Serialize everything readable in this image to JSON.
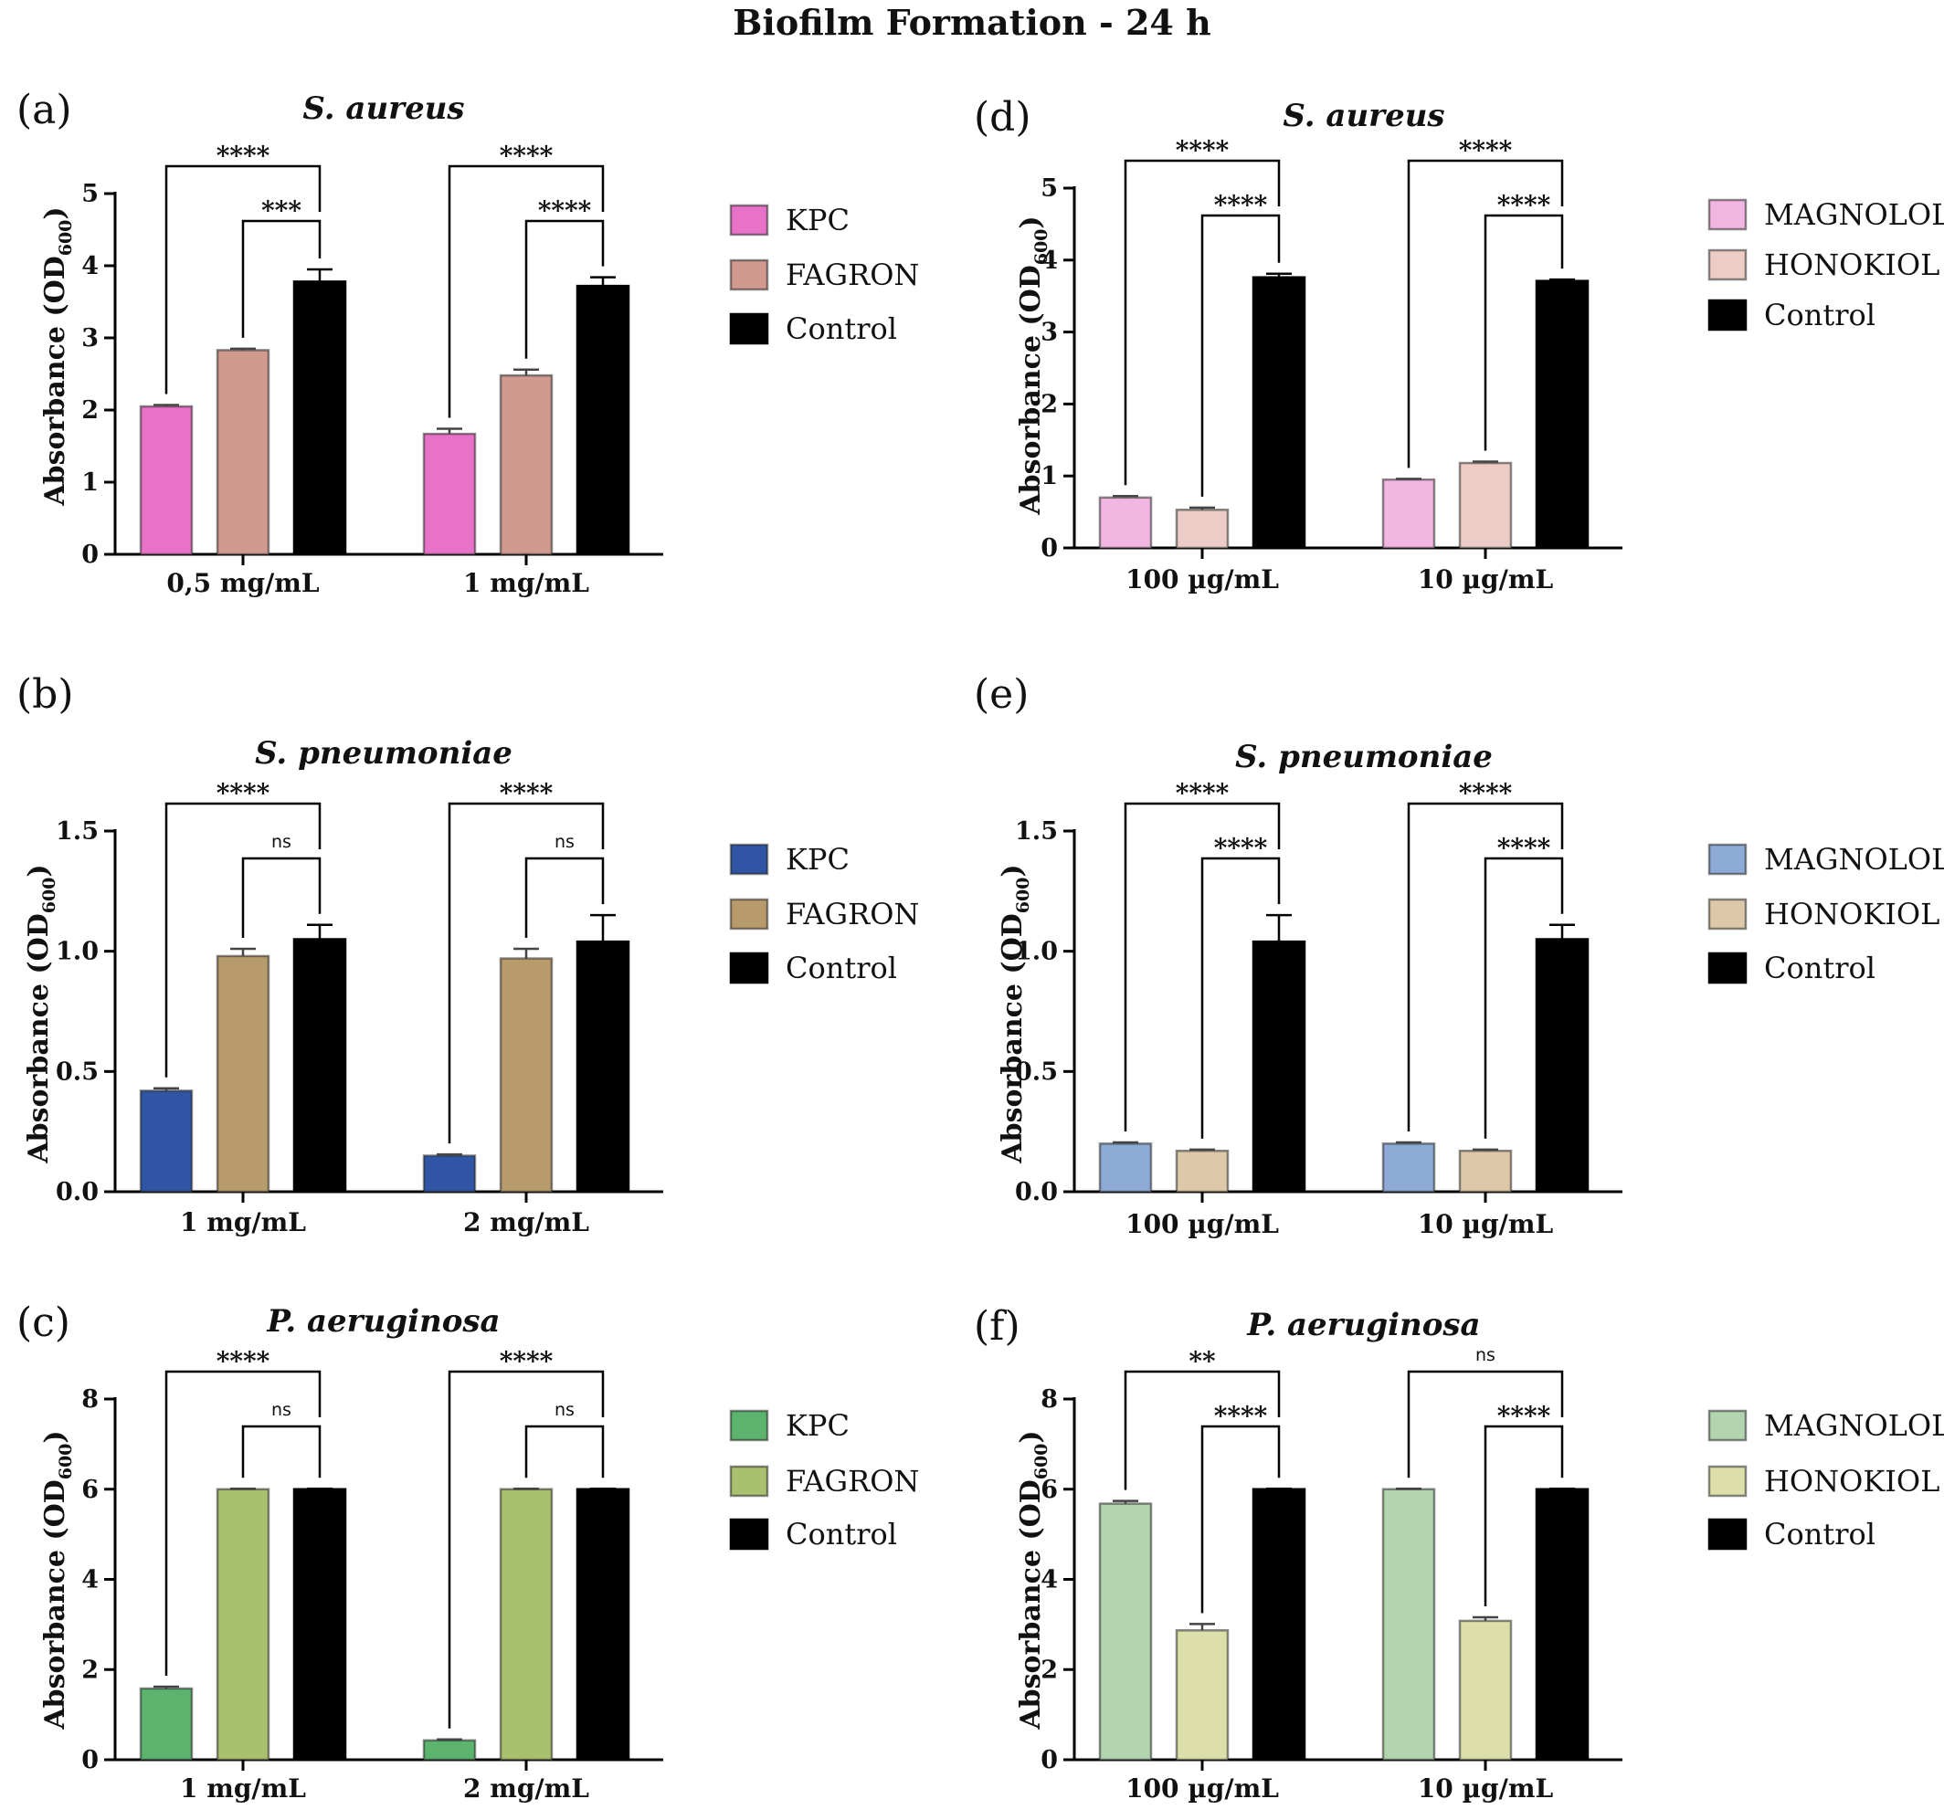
{
  "figure_title": "Biofilm Formation - 24 h",
  "colors": {
    "kpc_sa": "#e872c8",
    "fag_sa": "#d19a8e",
    "kpc_sp": "#2f55a4",
    "fag_sp": "#b89b6c",
    "kpc_pa": "#5bb36e",
    "fag_pa": "#a9c06e",
    "mag_sa": "#f2b6e2",
    "hon_sa": "#ecccc4",
    "mag_sp": "#8eaad6",
    "hon_sp": "#ddc9a9",
    "mag_pa": "#b2d4ae",
    "hon_pa": "#dddfaa",
    "control": "#000000"
  },
  "chart_data": [
    {
      "panel": "(a)",
      "type": "bar",
      "title": "S. aureus",
      "ylabel": "Absorbance (OD600)",
      "ylim": [
        0,
        5
      ],
      "yticks": [
        "0",
        "1",
        "2",
        "3",
        "4",
        "5"
      ],
      "categories": [
        "0,5 mg/mL",
        "1 mg/mL"
      ],
      "legend": [
        "KPC",
        "FAGRON",
        "Control"
      ],
      "series": [
        {
          "name": "KPC",
          "values": [
            2.05,
            1.67
          ],
          "errors": [
            0.02,
            0.07
          ],
          "color": "#e872c8"
        },
        {
          "name": "FAGRON",
          "values": [
            2.83,
            2.48
          ],
          "errors": [
            0.02,
            0.08
          ],
          "color": "#d19a8e"
        },
        {
          "name": "Control",
          "values": [
            3.78,
            3.72
          ],
          "errors": [
            0.17,
            0.12
          ],
          "color": "#000000"
        }
      ],
      "significance": [
        {
          "outer": "****",
          "inner": "***"
        },
        {
          "outer": "****",
          "inner": "****"
        }
      ]
    },
    {
      "panel": "(b)",
      "type": "bar",
      "title": "S. pneumoniae",
      "ylabel": "Absorbance (OD600)",
      "ylim": [
        0,
        1.5
      ],
      "yticks": [
        "0.0",
        "0.5",
        "1.0",
        "1.5"
      ],
      "categories": [
        "1 mg/mL",
        "2 mg/mL"
      ],
      "legend": [
        "KPC",
        "FAGRON",
        "Control"
      ],
      "series": [
        {
          "name": "KPC",
          "values": [
            0.42,
            0.15
          ],
          "errors": [
            0.01,
            0.005
          ],
          "color": "#2f55a4"
        },
        {
          "name": "FAGRON",
          "values": [
            0.98,
            0.97
          ],
          "errors": [
            0.03,
            0.04
          ],
          "color": "#b89b6c"
        },
        {
          "name": "Control",
          "values": [
            1.05,
            1.04
          ],
          "errors": [
            0.06,
            0.11
          ],
          "color": "#000000"
        }
      ],
      "significance": [
        {
          "outer": "****",
          "inner": "ns"
        },
        {
          "outer": "****",
          "inner": "ns"
        }
      ]
    },
    {
      "panel": "(c)",
      "type": "bar",
      "title": "P. aeruginosa",
      "ylabel": "Absorbance (OD600)",
      "ylim": [
        0,
        8
      ],
      "yticks": [
        "0",
        "2",
        "4",
        "6",
        "8"
      ],
      "categories": [
        "1 mg/mL",
        "2 mg/mL"
      ],
      "legend": [
        "KPC",
        "FAGRON",
        "Control"
      ],
      "series": [
        {
          "name": "KPC",
          "values": [
            1.58,
            0.43
          ],
          "errors": [
            0.04,
            0.02
          ],
          "color": "#5bb36e"
        },
        {
          "name": "FAGRON",
          "values": [
            6.0,
            6.0
          ],
          "errors": [
            0.01,
            0.01
          ],
          "color": "#a9c06e"
        },
        {
          "name": "Control",
          "values": [
            6.0,
            6.0
          ],
          "errors": [
            0.01,
            0.01
          ],
          "color": "#000000"
        }
      ],
      "significance": [
        {
          "outer": "****",
          "inner": "ns"
        },
        {
          "outer": "****",
          "inner": "ns"
        }
      ]
    },
    {
      "panel": "(d)",
      "type": "bar",
      "title": "S. aureus",
      "ylabel": "Absorbance (OD600)",
      "ylim": [
        0,
        5
      ],
      "yticks": [
        "0",
        "1",
        "2",
        "3",
        "4",
        "5"
      ],
      "categories": [
        "100 µg/mL",
        "10 µg/mL"
      ],
      "legend": [
        "MAGNOLOL",
        "HONOKIOL",
        "Control"
      ],
      "series": [
        {
          "name": "MAGNOLOL",
          "values": [
            0.7,
            0.95
          ],
          "errors": [
            0.02,
            0.01
          ],
          "color": "#f2b6e2"
        },
        {
          "name": "HONOKIOL",
          "values": [
            0.53,
            1.18
          ],
          "errors": [
            0.03,
            0.02
          ],
          "color": "#ecccc4"
        },
        {
          "name": "Control",
          "values": [
            3.76,
            3.71
          ],
          "errors": [
            0.05,
            0.02
          ],
          "color": "#000000"
        }
      ],
      "significance": [
        {
          "outer": "****",
          "inner": "****"
        },
        {
          "outer": "****",
          "inner": "****"
        }
      ]
    },
    {
      "panel": "(e)",
      "type": "bar",
      "title": "S. pneumoniae",
      "ylabel": "Absorbance (OD600)",
      "ylim": [
        0,
        1.5
      ],
      "yticks": [
        "0.0",
        "0.5",
        "1.0",
        "1.5"
      ],
      "categories": [
        "100 µg/mL",
        "10 µg/mL"
      ],
      "legend": [
        "MAGNOLOL",
        "HONOKIOL",
        "Control"
      ],
      "series": [
        {
          "name": "MAGNOLOL",
          "values": [
            0.2,
            0.2
          ],
          "errors": [
            0.005,
            0.005
          ],
          "color": "#8eaad6"
        },
        {
          "name": "HONOKIOL",
          "values": [
            0.17,
            0.17
          ],
          "errors": [
            0.005,
            0.005
          ],
          "color": "#ddc9a9"
        },
        {
          "name": "Control",
          "values": [
            1.04,
            1.05
          ],
          "errors": [
            0.11,
            0.06
          ],
          "color": "#000000"
        }
      ],
      "significance": [
        {
          "outer": "****",
          "inner": "****"
        },
        {
          "outer": "****",
          "inner": "****"
        }
      ]
    },
    {
      "panel": "(f)",
      "type": "bar",
      "title": "P. aeruginosa",
      "ylabel": "Absorbance (OD600)",
      "ylim": [
        0,
        8
      ],
      "yticks": [
        "0",
        "2",
        "4",
        "6",
        "8"
      ],
      "categories": [
        "100 µg/mL",
        "10 µg/mL"
      ],
      "legend": [
        "MAGNOLOL",
        "HONOKIOL",
        "Control"
      ],
      "series": [
        {
          "name": "MAGNOLOL",
          "values": [
            5.68,
            6.0
          ],
          "errors": [
            0.06,
            0.01
          ],
          "color": "#b2d4ae"
        },
        {
          "name": "HONOKIOL",
          "values": [
            2.87,
            3.08
          ],
          "errors": [
            0.14,
            0.08
          ],
          "color": "#dddfaa"
        },
        {
          "name": "Control",
          "values": [
            6.0,
            6.0
          ],
          "errors": [
            0.01,
            0.01
          ],
          "color": "#000000"
        }
      ],
      "significance": [
        {
          "outer": "**",
          "inner": "****"
        },
        {
          "outer": "ns",
          "inner": "****"
        }
      ]
    }
  ]
}
